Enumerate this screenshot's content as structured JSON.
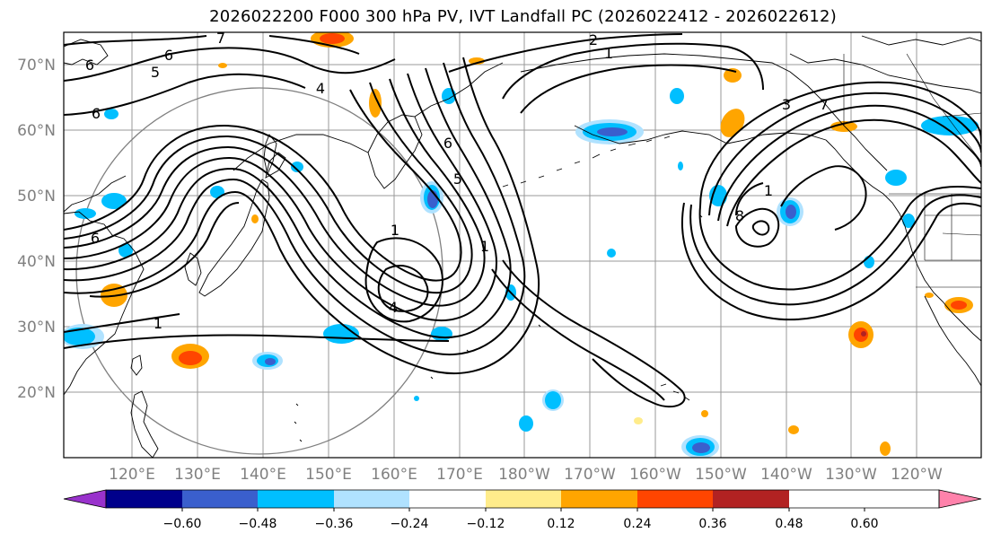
{
  "title": "2026022200 F000 300 hPa PV, IVT Landfall PC (2026022412 - 2026022612)",
  "lat_labels": [
    "70°N",
    "60°N",
    "50°N",
    "40°N",
    "30°N",
    "20°N"
  ],
  "lon_labels": [
    "120°E",
    "130°E",
    "140°E",
    "150°E",
    "160°E",
    "170°E",
    "180°W",
    "170°W",
    "160°W",
    "150°W",
    "140°W",
    "130°W",
    "120°W"
  ],
  "colorbar": {
    "colors": [
      "#9932cc",
      "#00008b",
      "#3a5fcd",
      "#00bfff",
      "#b0e2ff",
      "#ffffff",
      "#ffec8b",
      "#ffa500",
      "#ff4500",
      "#b22222",
      "#ff82ab"
    ],
    "ticks": [
      "−0.60",
      "−0.48",
      "−0.36",
      "−0.24",
      "−0.12",
      "0.12",
      "0.24",
      "0.36",
      "0.48",
      "0.60"
    ]
  },
  "contour_labels": [
    "6",
    "6",
    "5",
    "6",
    "4",
    "7",
    "2",
    "1",
    "6",
    "5",
    "1",
    "1",
    "4",
    "1",
    "3",
    "7",
    "6",
    "8",
    "1"
  ]
}
